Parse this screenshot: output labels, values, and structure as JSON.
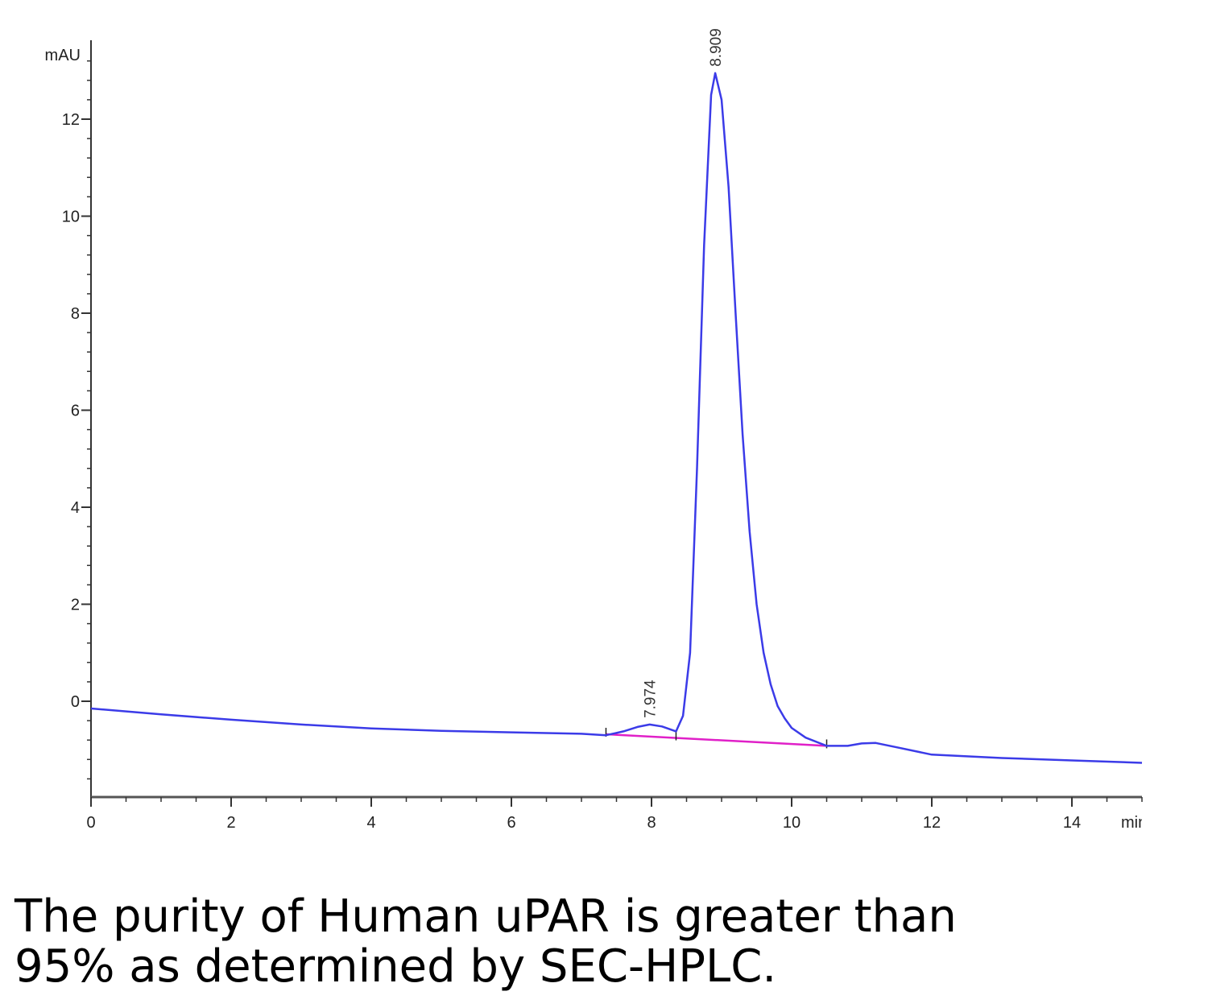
{
  "chart_data": {
    "type": "line",
    "ylabel": "mAU",
    "xlabel": "min",
    "xlim": [
      0,
      15
    ],
    "ylim": [
      -2,
      13.5
    ],
    "x_ticks": [
      0,
      2,
      4,
      6,
      8,
      10,
      12,
      14
    ],
    "y_ticks": [
      0,
      2,
      4,
      6,
      8,
      10,
      12
    ],
    "series": [
      {
        "color": "#3b3be8",
        "x": [
          0,
          1,
          2,
          3,
          4,
          5,
          6,
          7,
          7.35,
          7.6,
          7.8,
          7.974,
          8.15,
          8.35,
          8.45,
          8.55,
          8.65,
          8.75,
          8.85,
          8.909,
          9.0,
          9.1,
          9.2,
          9.3,
          9.4,
          9.5,
          9.6,
          9.7,
          9.8,
          9.9,
          10.0,
          10.2,
          10.5,
          10.8,
          11.0,
          11.2,
          11.5,
          12.0,
          13.0,
          14.0,
          15.0
        ],
        "y": [
          -0.15,
          -0.27,
          -0.38,
          -0.48,
          -0.56,
          -0.61,
          -0.64,
          -0.67,
          -0.7,
          -0.62,
          -0.53,
          -0.48,
          -0.52,
          -0.62,
          -0.3,
          1.0,
          4.8,
          9.4,
          12.5,
          12.95,
          12.4,
          10.6,
          8.0,
          5.5,
          3.5,
          2.0,
          1.0,
          0.35,
          -0.1,
          -0.35,
          -0.55,
          -0.75,
          -0.92,
          -0.92,
          -0.87,
          -0.86,
          -0.95,
          -1.1,
          -1.17,
          -1.22,
          -1.27
        ]
      }
    ],
    "baselines": [
      {
        "color": "#e020c8",
        "x": [
          7.35,
          10.5
        ],
        "y": [
          -0.68,
          -0.92
        ]
      }
    ],
    "baseline_markers": [
      7.35,
      8.35,
      10.5
    ],
    "peak_labels": [
      {
        "x": 7.974,
        "y": -0.48,
        "text": "7.974"
      },
      {
        "x": 8.909,
        "y": 12.95,
        "text": "8.909"
      }
    ]
  },
  "caption": {
    "line1": "The purity of Human uPAR is greater than",
    "line2": "95% as determined by SEC-HPLC."
  }
}
